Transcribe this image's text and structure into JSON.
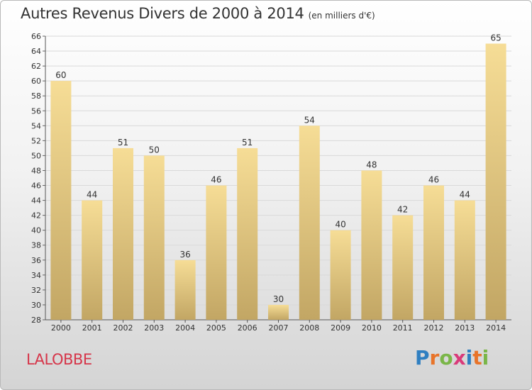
{
  "title": "Autres Revenus Divers de 2000 à 2014",
  "subtitle": "(en milliers d'€)",
  "place": "LALOBBE",
  "logo": {
    "text": "Proxiti",
    "letters": [
      {
        "ch": "P",
        "color": "#2f7fc1"
      },
      {
        "ch": "r",
        "color": "#e8742a"
      },
      {
        "ch": "o",
        "color": "#7ab648"
      },
      {
        "ch": "x",
        "color": "#d93a7a"
      },
      {
        "ch": "i",
        "color": "#2f7fc1"
      },
      {
        "ch": "t",
        "color": "#e8742a"
      },
      {
        "ch": "i",
        "color": "#7ab648"
      }
    ]
  },
  "colors": {
    "bar_top": "#f6dd96",
    "bar_bottom": "#c2a664",
    "title": "#333333",
    "place": "#d6364a"
  },
  "chart_data": {
    "type": "bar",
    "title": "Autres Revenus Divers de 2000 à 2014",
    "subtitle": "(en milliers d'€)",
    "categories": [
      "2000",
      "2001",
      "2002",
      "2003",
      "2004",
      "2005",
      "2006",
      "2007",
      "2008",
      "2009",
      "2010",
      "2011",
      "2012",
      "2013",
      "2014"
    ],
    "values": [
      60,
      44,
      51,
      50,
      36,
      46,
      51,
      30,
      54,
      40,
      48,
      42,
      46,
      44,
      65
    ],
    "ylim": [
      28,
      66
    ],
    "yticks": [
      28,
      30,
      32,
      34,
      36,
      38,
      40,
      42,
      44,
      46,
      48,
      50,
      52,
      54,
      56,
      58,
      60,
      62,
      64,
      66
    ],
    "grid": true,
    "data_labels": true,
    "xlabel": "",
    "ylabel": ""
  }
}
